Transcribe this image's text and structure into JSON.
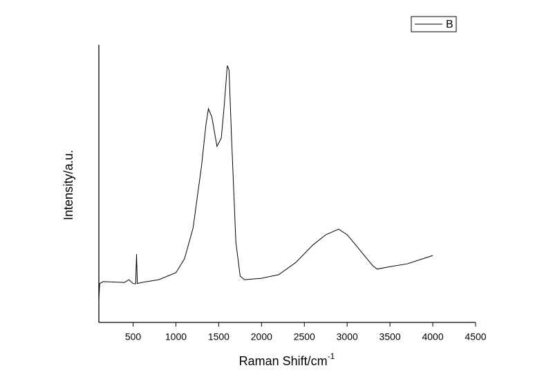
{
  "chart_data": {
    "type": "line",
    "xlabel": "Raman Shift/cm",
    "xlabel_superscript": "-1",
    "ylabel": "Intensity/a.u.",
    "x": [
      100,
      110,
      150,
      400,
      450,
      500,
      530,
      540,
      550,
      600,
      800,
      1000,
      1100,
      1200,
      1300,
      1350,
      1380,
      1420,
      1480,
      1530,
      1560,
      1600,
      1620,
      1650,
      1700,
      1750,
      1800,
      2000,
      2200,
      2400,
      2600,
      2750,
      2900,
      3000,
      3100,
      3200,
      3300,
      3350,
      3500,
      3700,
      3900,
      4000
    ],
    "series": [
      {
        "name": "B",
        "color": "#000000",
        "values": [
          8,
          14,
          14.7,
          14.4,
          15.4,
          14,
          13.9,
          24.6,
          14,
          14.4,
          15.4,
          17.9,
          22.9,
          34,
          56.5,
          71,
          77,
          74,
          63.4,
          66.4,
          76.4,
          92.5,
          91,
          66.4,
          29,
          16.7,
          15.4,
          15.9,
          17.2,
          21.6,
          27.9,
          31.6,
          33.6,
          31.6,
          27.9,
          24.1,
          20.4,
          19.2,
          20.1,
          21.1,
          23.1,
          24.1
        ]
      }
    ],
    "xlim": [
      100,
      4500
    ],
    "ylim": [
      0,
      100
    ],
    "xticks": [
      500,
      1000,
      1500,
      2000,
      2500,
      3000,
      3500,
      4000,
      4500
    ],
    "legend": "upper right"
  }
}
